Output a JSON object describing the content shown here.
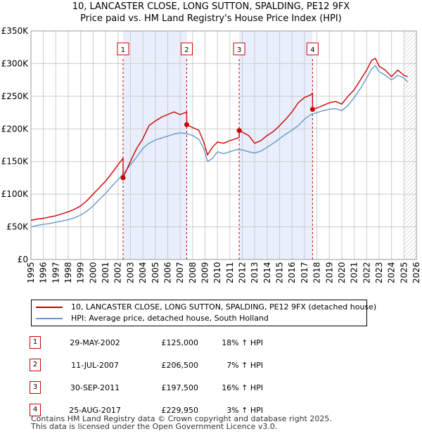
{
  "title": "10, LANCASTER CLOSE, LONG SUTTON, SPALDING, PE12 9FX",
  "subtitle": "Price paid vs. HM Land Registry's House Price Index (HPI)",
  "colors": {
    "property": "#cc0000",
    "hpi": "#6699cc",
    "shade": "#e8eefb",
    "grid": "#cccccc"
  },
  "legend": {
    "property_label": "10, LANCASTER CLOSE, LONG SUTTON, SPALDING, PE12 9FX (detached house)",
    "hpi_label": "HPI: Average price, detached house, South Holland"
  },
  "sales": [
    {
      "num": "1",
      "date": "29-MAY-2002",
      "price": "£125,000",
      "pct": "18% ↑ HPI"
    },
    {
      "num": "2",
      "date": "11-JUL-2007",
      "price": "£206,500",
      "pct": "7% ↑ HPI"
    },
    {
      "num": "3",
      "date": "30-SEP-2011",
      "price": "£197,500",
      "pct": "16% ↑ HPI"
    },
    {
      "num": "4",
      "date": "25-AUG-2017",
      "price": "£229,950",
      "pct": "3% ↑ HPI"
    }
  ],
  "footer": {
    "line1": "Contains HM Land Registry data © Crown copyright and database right 2025.",
    "line2": "This data is licensed under the Open Government Licence v3.0."
  },
  "chart_data": {
    "type": "line",
    "xlim": [
      1995,
      2026
    ],
    "ylim": [
      0,
      350000
    ],
    "y_ticks": [
      {
        "value": 0,
        "label": "£0"
      },
      {
        "value": 50000,
        "label": "£50K"
      },
      {
        "value": 100000,
        "label": "£100K"
      },
      {
        "value": 150000,
        "label": "£150K"
      },
      {
        "value": 200000,
        "label": "£200K"
      },
      {
        "value": 250000,
        "label": "£250K"
      },
      {
        "value": 300000,
        "label": "£300K"
      },
      {
        "value": 350000,
        "label": "£350K"
      }
    ],
    "x_ticks": [
      "1995",
      "1996",
      "1997",
      "1998",
      "1999",
      "2000",
      "2001",
      "2002",
      "2003",
      "2004",
      "2005",
      "2006",
      "2007",
      "2008",
      "2009",
      "2010",
      "2011",
      "2012",
      "2013",
      "2014",
      "2015",
      "2016",
      "2017",
      "2018",
      "2019",
      "2020",
      "2021",
      "2022",
      "2023",
      "2024",
      "2025",
      "2026"
    ],
    "shaded_periods": [
      [
        2002.41,
        2007.53
      ],
      [
        2011.75,
        2017.65
      ]
    ],
    "future_start": 2025.0,
    "markers": [
      {
        "label": "1",
        "x": 2002.41,
        "y": 125000
      },
      {
        "label": "2",
        "x": 2007.53,
        "y": 206500
      },
      {
        "label": "3",
        "x": 2011.75,
        "y": 197500
      },
      {
        "label": "4",
        "x": 2017.65,
        "y": 229950
      }
    ],
    "series": [
      {
        "name": "10, LANCASTER CLOSE, LONG SUTTON, SPALDING, PE12 9FX (detached house)",
        "x": [
          1995.0,
          1995.5,
          1996.0,
          1996.5,
          1997.0,
          1997.5,
          1998.0,
          1998.5,
          1999.0,
          1999.5,
          2000.0,
          2000.5,
          2001.0,
          2001.5,
          2002.0,
          2002.41,
          2002.41,
          2003.0,
          2003.5,
          2004.0,
          2004.5,
          2005.0,
          2005.5,
          2006.0,
          2006.5,
          2007.0,
          2007.3,
          2007.53,
          2007.53,
          2008.0,
          2008.5,
          2008.9,
          2009.2,
          2009.6,
          2010.0,
          2010.5,
          2011.0,
          2011.5,
          2011.75,
          2011.75,
          2012.0,
          2012.5,
          2013.0,
          2013.5,
          2014.0,
          2014.5,
          2015.0,
          2015.5,
          2016.0,
          2016.5,
          2017.0,
          2017.5,
          2017.65,
          2017.65,
          2018.0,
          2018.5,
          2019.0,
          2019.5,
          2020.0,
          2020.5,
          2021.0,
          2021.5,
          2022.0,
          2022.4,
          2022.7,
          2023.0,
          2023.5,
          2024.0,
          2024.5,
          2025.0,
          2025.3
        ],
        "y": [
          60000,
          62000,
          63000,
          65000,
          67000,
          70000,
          73000,
          77000,
          82000,
          90000,
          100000,
          110000,
          120000,
          132000,
          145000,
          155000,
          125000,
          150000,
          170000,
          185000,
          205000,
          212000,
          218000,
          222000,
          226000,
          222000,
          224000,
          226000,
          206500,
          202000,
          198000,
          180000,
          160000,
          172000,
          180000,
          178000,
          182000,
          185000,
          187000,
          197500,
          195000,
          190000,
          178000,
          182000,
          190000,
          196000,
          205000,
          215000,
          226000,
          240000,
          248000,
          252000,
          255000,
          229950,
          232000,
          236000,
          240000,
          242000,
          238000,
          250000,
          260000,
          275000,
          290000,
          305000,
          308000,
          296000,
          290000,
          280000,
          290000,
          282000,
          280000
        ]
      },
      {
        "name": "HPI: Average price, detached house, South Holland",
        "x": [
          1995.0,
          1995.5,
          1996.0,
          1996.5,
          1997.0,
          1997.5,
          1998.0,
          1998.5,
          1999.0,
          1999.5,
          2000.0,
          2000.5,
          2001.0,
          2001.5,
          2002.0,
          2002.5,
          2003.0,
          2003.5,
          2004.0,
          2004.5,
          2005.0,
          2005.5,
          2006.0,
          2006.5,
          2007.0,
          2007.5,
          2008.0,
          2008.5,
          2008.9,
          2009.2,
          2009.6,
          2010.0,
          2010.5,
          2011.0,
          2011.5,
          2012.0,
          2012.5,
          2013.0,
          2013.5,
          2014.0,
          2014.5,
          2015.0,
          2015.5,
          2016.0,
          2016.5,
          2017.0,
          2017.5,
          2018.0,
          2018.5,
          2019.0,
          2019.5,
          2020.0,
          2020.5,
          2021.0,
          2021.5,
          2022.0,
          2022.4,
          2022.7,
          2023.0,
          2023.5,
          2024.0,
          2024.5,
          2025.0,
          2025.3
        ],
        "y": [
          50000,
          52000,
          54000,
          55000,
          57000,
          59000,
          61000,
          64000,
          68000,
          74000,
          82000,
          92000,
          101000,
          112000,
          122000,
          133000,
          145000,
          157000,
          170000,
          178000,
          183000,
          186000,
          189000,
          192000,
          194000,
          193000,
          190000,
          184000,
          170000,
          150000,
          155000,
          165000,
          162000,
          165000,
          168000,
          168000,
          165000,
          163000,
          166000,
          172000,
          178000,
          185000,
          192000,
          198000,
          205000,
          215000,
          222000,
          225000,
          228000,
          230000,
          231000,
          228000,
          236000,
          248000,
          262000,
          278000,
          292000,
          297000,
          288000,
          282000,
          275000,
          282000,
          278000,
          272000
        ]
      }
    ]
  }
}
